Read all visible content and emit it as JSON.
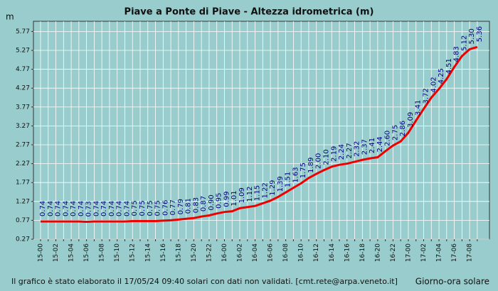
{
  "chart_data": {
    "type": "line",
    "title": "Piave a Ponte di Piave - Altezza idrometrica (m)",
    "y_label": "m",
    "x_label": "Giorno-ora solare",
    "footnote": "Il grafico è stato elaborato il 17/05/24 09:40 solari con dati non validati. [cmt.rete@arpa.veneto.it]",
    "categories": [
      "15-00",
      null,
      "15-02",
      null,
      "15-04",
      null,
      "15-06",
      null,
      "15-08",
      null,
      "15-10",
      null,
      "15-12",
      null,
      "15-14",
      null,
      "15-16",
      null,
      "15-18",
      null,
      "15-20",
      null,
      "15-22",
      null,
      "16-00",
      null,
      "16-02",
      null,
      "16-04",
      null,
      "16-06",
      null,
      "16-08",
      null,
      "16-10",
      null,
      "16-12",
      null,
      "16-14",
      null,
      "16-16",
      null,
      "16-18",
      null,
      "16-20",
      null,
      "16-22",
      null,
      "17-00",
      null,
      "17-02",
      null,
      "17-04",
      null,
      "17-06",
      null,
      "17-08",
      null
    ],
    "series": [
      {
        "name": "Altezza idrometrica",
        "color": "#ee0000",
        "values": [
          0.74,
          0.74,
          0.74,
          0.74,
          0.74,
          0.74,
          0.73,
          0.74,
          0.74,
          0.74,
          0.74,
          0.74,
          0.75,
          0.75,
          0.75,
          0.75,
          0.76,
          0.77,
          0.79,
          0.81,
          0.83,
          0.87,
          0.9,
          0.95,
          0.99,
          1.01,
          1.09,
          1.12,
          1.15,
          1.22,
          1.29,
          1.39,
          1.51,
          1.63,
          1.75,
          1.89,
          2.0,
          2.1,
          2.19,
          2.24,
          2.27,
          2.32,
          2.37,
          2.41,
          2.44,
          2.6,
          2.75,
          2.86,
          3.09,
          3.41,
          3.72,
          4.02,
          4.25,
          4.51,
          4.83,
          5.12,
          5.3,
          5.36
        ],
        "value_labels": [
          "0.74",
          "0.74",
          "0.74",
          "0.74",
          "0.74",
          "0.74",
          "0.73",
          "0.74",
          "0.74",
          "0.74",
          "0.74",
          "0.74",
          "0.75",
          "0.75",
          "0.75",
          "0.75",
          "0.76",
          "0.77",
          "0.79",
          "0.81",
          "0.83",
          "0.87",
          "0.90",
          "0.95",
          "0.99",
          "1.01",
          "1.09",
          "1.12",
          "1.15",
          "1.22",
          "1.29",
          "1.39",
          "1.51",
          "1.63",
          "1.75",
          "1.89",
          "2.00",
          "2.10",
          "2.19",
          "2.24",
          "2.27",
          "2.32",
          "2.37",
          "2.41",
          "2.44",
          "2.60",
          "2.75",
          "2.86",
          "3.09",
          "3.41",
          "3.72",
          "4.02",
          "4.25",
          "4.51",
          "4.83",
          "5.12",
          "5.30",
          "5.36"
        ]
      }
    ],
    "ylim": [
      0.27,
      6.04
    ],
    "yticks": [
      0.27,
      0.77,
      1.27,
      1.77,
      2.27,
      2.77,
      3.27,
      3.77,
      4.27,
      4.77,
      5.27,
      5.77
    ],
    "grid": true
  }
}
